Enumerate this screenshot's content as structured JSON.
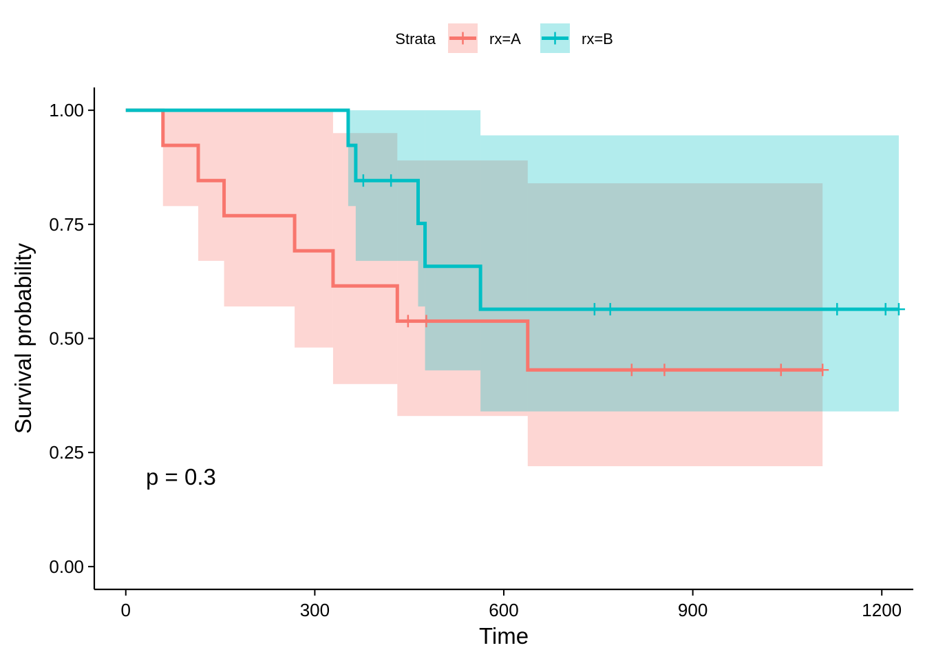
{
  "chart_data": {
    "type": "line",
    "subtype": "kaplan-meier step curve with confidence bands",
    "xlabel": "Time",
    "ylabel": "Survival probability",
    "xlim": [
      -50,
      1250
    ],
    "ylim": [
      -0.05,
      1.05
    ],
    "x_ticks": [
      0,
      300,
      600,
      900,
      1200
    ],
    "x_tick_labels": [
      "0",
      "300",
      "600",
      "900",
      "1200"
    ],
    "y_ticks": [
      0,
      0.25,
      0.5,
      0.75,
      1.0
    ],
    "y_tick_labels": [
      "0.00",
      "0.25",
      "0.50",
      "0.75",
      "1.00"
    ],
    "grid": false,
    "legend": {
      "title": "Strata",
      "position": "top",
      "entries": [
        "rx=A",
        "rx=B"
      ]
    },
    "annotation": "p = 0.3",
    "series": [
      {
        "name": "rx=A",
        "color": "#F8766D",
        "steps": [
          {
            "x": 0,
            "y": 1.0,
            "lower": 1.0,
            "upper": 1.0
          },
          {
            "x": 59,
            "y": 0.923,
            "lower": 0.79,
            "upper": 1.0
          },
          {
            "x": 115,
            "y": 0.846,
            "lower": 0.67,
            "upper": 1.0
          },
          {
            "x": 156,
            "y": 0.769,
            "lower": 0.57,
            "upper": 1.0
          },
          {
            "x": 268,
            "y": 0.692,
            "lower": 0.48,
            "upper": 1.0
          },
          {
            "x": 329,
            "y": 0.615,
            "lower": 0.4,
            "upper": 0.95
          },
          {
            "x": 431,
            "y": 0.538,
            "lower": 0.33,
            "upper": 0.89
          },
          {
            "x": 638,
            "y": 0.431,
            "lower": 0.22,
            "upper": 0.84
          }
        ],
        "end_x": 1106,
        "censor_x": [
          448,
          477,
          803,
          855,
          1040,
          1106
        ]
      },
      {
        "name": "rx=B",
        "color": "#00BFC4",
        "steps": [
          {
            "x": 0,
            "y": 1.0,
            "lower": 1.0,
            "upper": 1.0
          },
          {
            "x": 353,
            "y": 0.923,
            "lower": 0.79,
            "upper": 1.0
          },
          {
            "x": 365,
            "y": 0.846,
            "lower": 0.67,
            "upper": 1.0
          },
          {
            "x": 464,
            "y": 0.752,
            "lower": 0.57,
            "upper": 1.0
          },
          {
            "x": 475,
            "y": 0.658,
            "lower": 0.43,
            "upper": 1.0
          },
          {
            "x": 563,
            "y": 0.564,
            "lower": 0.34,
            "upper": 0.945
          }
        ],
        "end_x": 1227,
        "censor_x": [
          377,
          421,
          744,
          769,
          1129,
          1206,
          1227
        ]
      }
    ]
  }
}
